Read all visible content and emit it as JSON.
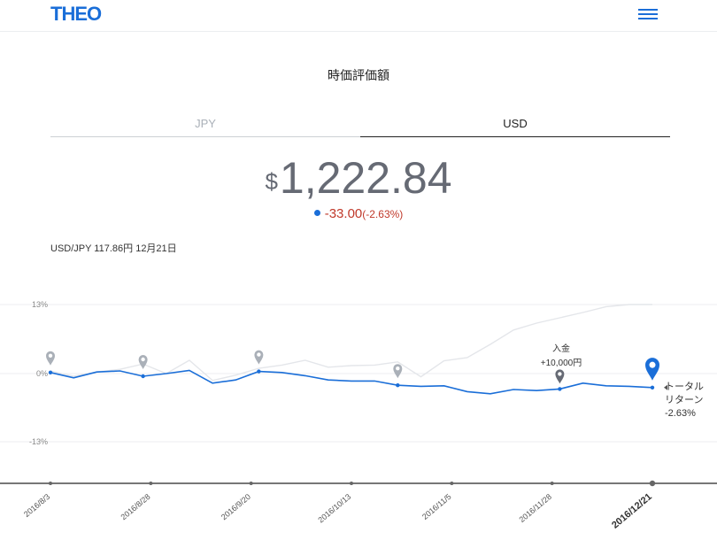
{
  "header": {
    "logo": "THEO",
    "menu_icon": "hamburger-icon"
  },
  "title": "時価評価額",
  "tabs": [
    {
      "label": "JPY",
      "active": false
    },
    {
      "label": "USD",
      "active": true
    }
  ],
  "value": {
    "currency_symbol": "$",
    "amount": "1,222.84",
    "change": "-33.00",
    "change_pct": "(-2.63%)"
  },
  "rate_text": "USD/JPY 117.86円 12月21日",
  "colors": {
    "accent": "#1a6ed8",
    "negative": "#c0392b",
    "benchmark": "#e4e6ea"
  },
  "chart_data": {
    "type": "line",
    "y_ticks": [
      "13%",
      "0%",
      "-13%"
    ],
    "ylim": [
      -20,
      13
    ],
    "x_ticks": [
      "2016/8/3",
      "2016/8/28",
      "2016/9/20",
      "2016/10/13",
      "2016/11/5",
      "2016/11/28",
      "2016/12/21"
    ],
    "series": [
      {
        "role": "portfolio",
        "values": [
          0.2,
          -0.8,
          0.3,
          0.5,
          -0.5,
          0,
          0.6,
          -1.8,
          -1.2,
          0.4,
          0.2,
          -0.4,
          -1.2,
          -1.4,
          -1.4,
          -2.2,
          -2.4,
          -2.3,
          -3.4,
          -3.8,
          -3.0,
          -3.2,
          -2.9,
          -1.8,
          -2.3,
          -2.4,
          -2.63
        ]
      },
      {
        "role": "benchmark",
        "values": [
          0.5,
          -0.5,
          0.3,
          0.8,
          1.8,
          0,
          2.5,
          -1.3,
          -0.3,
          1.0,
          1.6,
          2.5,
          1.2,
          1.5,
          1.6,
          2.2,
          -0.6,
          2.4,
          3.0,
          5.5,
          8.2,
          9.5,
          10.5,
          11.5,
          12.6,
          13.0,
          13.0
        ]
      }
    ],
    "x_values": [
      0,
      6,
      12,
      18,
      24,
      30,
      36,
      42,
      48,
      54,
      60,
      66,
      72,
      78,
      84,
      90,
      96,
      102,
      108,
      114,
      120,
      126,
      132,
      138,
      144,
      150,
      140
    ]
  },
  "markers": [
    {
      "type": "event",
      "x_index": 0
    },
    {
      "type": "event",
      "x_index": 1
    },
    {
      "type": "event",
      "x_index": 2
    },
    {
      "type": "event",
      "x_index": 3
    },
    {
      "type": "deposit",
      "label": "入金",
      "amount": "+10,000円"
    },
    {
      "type": "current",
      "label_line1": "トータル",
      "label_line2": "リターン",
      "value": "-2.63%"
    }
  ]
}
